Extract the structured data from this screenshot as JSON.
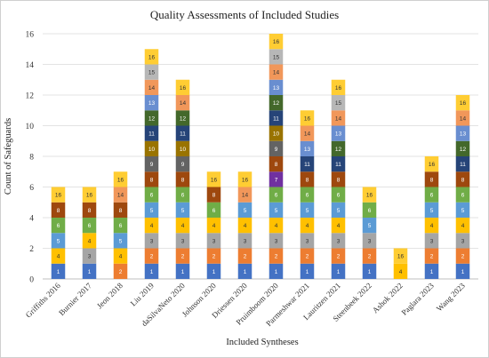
{
  "chart_data": {
    "type": "bar",
    "stacked": true,
    "title": "Quality Assessments of Included Studies",
    "xlabel": "Included Syntheses",
    "ylabel": "Count of Safeguards",
    "ylim": [
      0,
      16
    ],
    "yticks": [
      0,
      2,
      4,
      6,
      8,
      10,
      12,
      14,
      16
    ],
    "grid": true,
    "categories": [
      "Griffiths 2016",
      "Burnier 2017",
      "Jeon 2018",
      "Liu 2019",
      "daSilvaNeto 2020",
      "Johnson 2020",
      "Driessen 2020",
      "Pruimboom 2020",
      "Parmeshwar 2021",
      "Lauritzen 2021",
      "Steenbeek 2022",
      "Ashok 2022",
      "Paglara 2023",
      "Wang 2023"
    ],
    "bars": [
      [
        "1",
        "4",
        "5",
        "6",
        "8",
        "16"
      ],
      [
        "1",
        "3",
        "4",
        "6",
        "8",
        "16"
      ],
      [
        "2",
        "4",
        "5",
        "6",
        "8",
        "14",
        "16"
      ],
      [
        "1",
        "2",
        "3",
        "4",
        "5",
        "6",
        "8",
        "9",
        "10",
        "11",
        "12",
        "13",
        "14",
        "15",
        "16"
      ],
      [
        "1",
        "2",
        "3",
        "4",
        "5",
        "6",
        "8",
        "9",
        "10",
        "11",
        "12",
        "14",
        "16"
      ],
      [
        "1",
        "2",
        "3",
        "4",
        "6",
        "8",
        "16"
      ],
      [
        "1",
        "2",
        "3",
        "4",
        "5",
        "14",
        "16"
      ],
      [
        "1",
        "2",
        "3",
        "4",
        "5",
        "6",
        "7",
        "8",
        "9",
        "10",
        "11",
        "12",
        "13",
        "14",
        "15",
        "16"
      ],
      [
        "1",
        "2",
        "3",
        "4",
        "5",
        "6",
        "8",
        "11",
        "13",
        "14",
        "16"
      ],
      [
        "1",
        "2",
        "3",
        "4",
        "5",
        "6",
        "8",
        "11",
        "12",
        "13",
        "14",
        "15",
        "16"
      ],
      [
        "1",
        "2",
        "3",
        "5",
        "6",
        "16"
      ],
      [
        "4",
        "16"
      ],
      [
        "1",
        "2",
        "3",
        "4",
        "5",
        "6",
        "8",
        "16"
      ],
      [
        "1",
        "2",
        "3",
        "4",
        "5",
        "6",
        "8",
        "11",
        "12",
        "13",
        "14",
        "16"
      ]
    ],
    "segment_colors": {
      "1": "#4472c4",
      "2": "#ed7d31",
      "3": "#a5a5a5",
      "4": "#ffc000",
      "5": "#5b9bd5",
      "6": "#70ad47",
      "7": "#7030a0",
      "8": "#9e480e",
      "9": "#636363",
      "10": "#997300",
      "11": "#264478",
      "12": "#43682b",
      "13": "#698ed0",
      "14": "#f1975a",
      "15": "#b7b7b7",
      "16": "#ffcd33"
    },
    "dark_text_labels": [
      "3",
      "4",
      "14",
      "15",
      "16"
    ]
  }
}
